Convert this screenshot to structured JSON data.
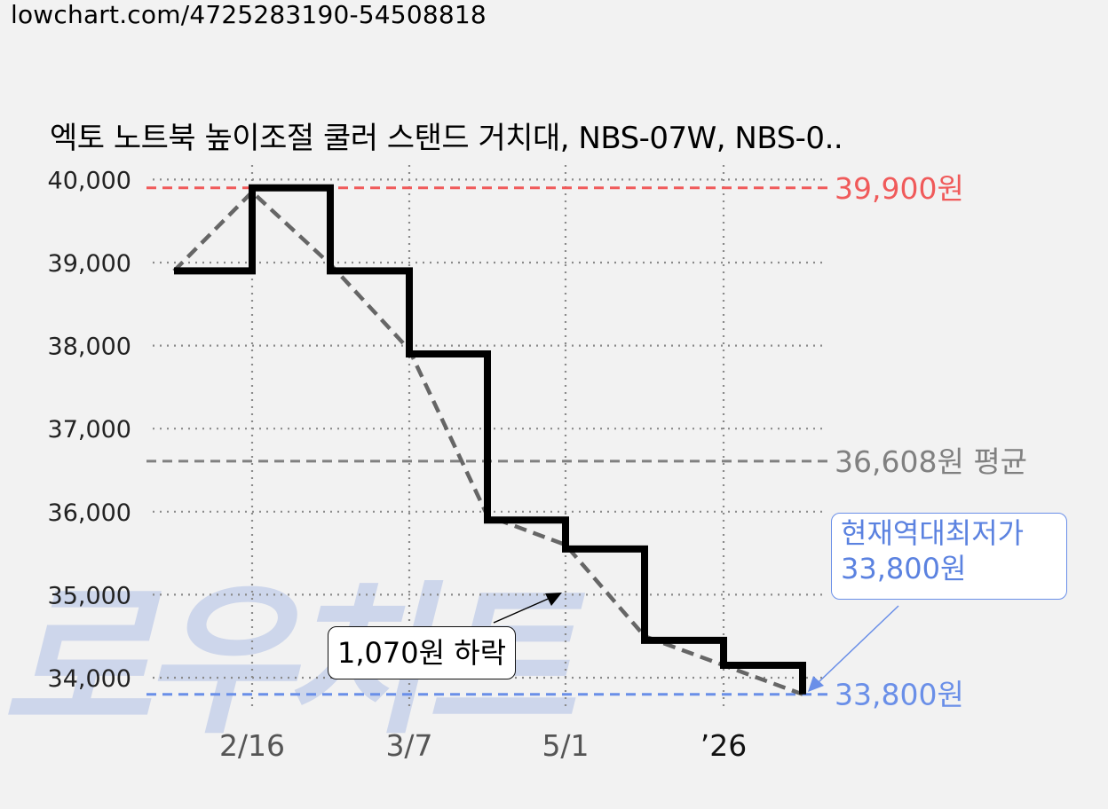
{
  "url": "lowchart.com/4725283190-54508818",
  "watermark": "로우차트",
  "chart_data": {
    "type": "line",
    "title": "엑토 노트북 높이조절 쿨러 스탠드 거치대, NBS-07W, NBS-0..",
    "ylim": [
      33600,
      40100
    ],
    "y_ticks": [
      34000,
      35000,
      36000,
      37000,
      38000,
      39000,
      40000
    ],
    "y_tick_labels": [
      "34,000",
      "35,000",
      "36,000",
      "37,000",
      "38,000",
      "39,000",
      "40,000"
    ],
    "x_ticks": [
      "2/16",
      "3/7",
      "5/1",
      "’26"
    ],
    "grid": true,
    "series": [
      {
        "kind": "price-step",
        "values": [
          38900,
          39900,
          38900,
          37900,
          35900,
          35550,
          34450,
          34150,
          33800
        ]
      },
      {
        "kind": "trend-dashed",
        "values": [
          38900,
          39850,
          38980,
          37950,
          35950,
          35600,
          34500,
          34150,
          33800
        ]
      }
    ],
    "reference_lines": [
      {
        "name": "max",
        "value": 39900,
        "label": "39,900원",
        "color": "#f05a5a"
      },
      {
        "name": "avg",
        "value": 36608,
        "label": "36,608원 평균",
        "color": "#808080"
      },
      {
        "name": "min",
        "value": 33800,
        "label": "33,800원",
        "color": "#6a8fe8"
      }
    ],
    "annotations": {
      "drop": "1,070원 하락",
      "low_line1": "현재역대최저가",
      "low_line2": "33,800원"
    }
  },
  "colors": {
    "background": "#f2f2f2",
    "price_line": "#000000",
    "trend_line": "#666666",
    "max": "#f05a5a",
    "avg": "#808080",
    "min": "#6a8fe8"
  }
}
